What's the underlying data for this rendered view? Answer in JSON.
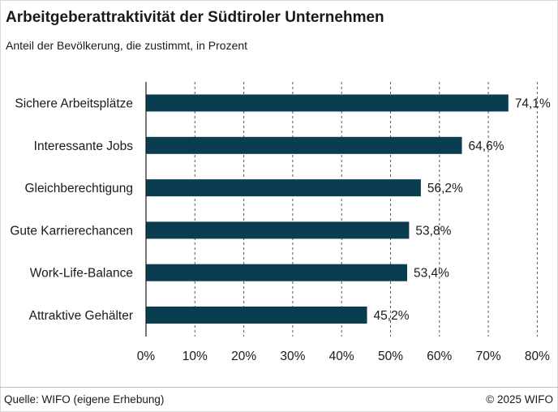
{
  "chart_data": {
    "type": "bar",
    "orientation": "horizontal",
    "title": "Arbeitgeberattraktivität der Südtiroler Unternehmen",
    "subtitle": "Anteil der Bevölkerung, die zustimmt, in Prozent",
    "categories": [
      "Sichere Arbeitsplätze",
      "Interessante Jobs",
      "Gleichberechtigung",
      "Gute Karrierechancen",
      "Work-Life-Balance",
      "Attraktive Gehälter"
    ],
    "values": [
      74.1,
      64.6,
      56.2,
      53.8,
      53.4,
      45.2
    ],
    "value_labels": [
      "74,1%",
      "64,6%",
      "56,2%",
      "53,8%",
      "53,4%",
      "45,2%"
    ],
    "xlim": [
      0,
      80
    ],
    "xticks": [
      0,
      10,
      20,
      30,
      40,
      50,
      60,
      70,
      80
    ],
    "xtick_labels": [
      "0%",
      "10%",
      "20%",
      "30%",
      "40%",
      "50%",
      "60%",
      "70%",
      "80%"
    ],
    "grid": "vertical dashed",
    "bar_color": "#0a3d4f"
  },
  "footer": {
    "source": "Quelle: WIFO (eigene Erhebung)",
    "copyright": "© 2025 WIFO"
  }
}
